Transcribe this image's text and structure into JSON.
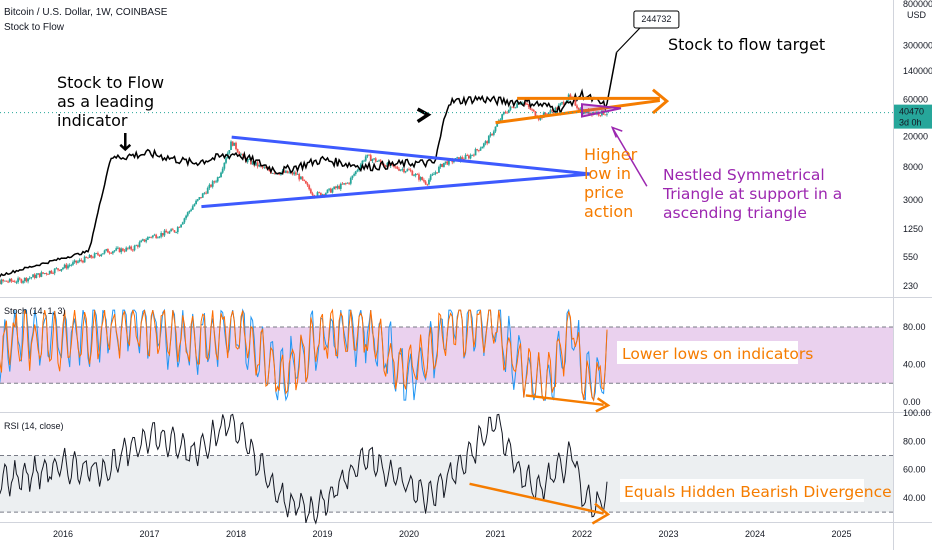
{
  "header": {
    "symbol_line": "Bitcoin / U.S. Dollar, 1W, COINBASE",
    "indicator_line": "Stock to Flow",
    "currency": "USD"
  },
  "price_box": {
    "value": "40470",
    "countdown": "3d 0h"
  },
  "colors": {
    "up": "#26a69a",
    "down": "#ef5350",
    "s2f": "#000000",
    "triangle": "#3d5afe",
    "orange": "#f57c00",
    "purple": "#9c27b0",
    "stoch_k": "#2196f3",
    "stoch_d": "#ff6d00",
    "band": "#e1bee7",
    "rsi_line": "#131722",
    "rsi_band": "#eceff1",
    "price_box": "#26a69a"
  },
  "annotations": {
    "s2f_leading": [
      "Stock to Flow",
      "as a leading",
      "indicator"
    ],
    "s2f_target": "Stock to flow target",
    "target_callout": "244732",
    "higher_low": [
      "Higher",
      "low in",
      "price",
      "action"
    ],
    "nestled": [
      "Nestled Symmetrical",
      "Triangle at support in a",
      "ascending triangle"
    ],
    "lower_lows": "Lower lows on indicators",
    "hidden_div": "Equals Hidden Bearish Divergence"
  },
  "chart_data": [
    {
      "type": "line",
      "title": "Bitcoin / U.S. Dollar, 1W, COINBASE",
      "scale": "log",
      "y_ticks": [
        "800000",
        "300000",
        "140000",
        "60000",
        "20000",
        "8000",
        "3000",
        "1250",
        "550",
        "230"
      ],
      "x_ticks": [
        "2016",
        "2017",
        "2018",
        "2019",
        "2020",
        "2021",
        "2022",
        "2023",
        "2024",
        "2025"
      ],
      "series": [
        {
          "name": "",
          "style": "candles",
          "x": [
            2015.0,
            2015.5,
            2016.0,
            2016.5,
            2016.8,
            2017.0,
            2017.3,
            2017.5,
            2017.8,
            2017.95,
            2018.1,
            2018.4,
            2018.7,
            2018.9,
            2019.0,
            2019.3,
            2019.5,
            2019.8,
            2020.0,
            2020.2,
            2020.4,
            2020.7,
            2020.9,
            2021.1,
            2021.3,
            2021.5,
            2021.7,
            2021.85,
            2022.0,
            2022.2,
            2022.3
          ],
          "values": [
            250,
            270,
            400,
            650,
            700,
            1000,
            1200,
            2500,
            6000,
            17000,
            10000,
            7000,
            6500,
            3500,
            3600,
            5000,
            11000,
            8000,
            7200,
            5000,
            9000,
            11000,
            17000,
            40000,
            58000,
            35000,
            45000,
            65000,
            42000,
            40000,
            40470
          ]
        },
        {
          "name": "Stock to Flow",
          "x": [
            2015.0,
            2015.6,
            2016.3,
            2016.55,
            2017.0,
            2017.5,
            2018.0,
            2018.5,
            2019.0,
            2019.5,
            2020.0,
            2020.3,
            2020.45,
            2020.8,
            2021.0,
            2021.4,
            2021.75,
            2022.0,
            2022.3,
            2022.4
          ],
          "values": [
            260,
            400,
            650,
            10500,
            12000,
            9000,
            12000,
            7000,
            10000,
            8000,
            9000,
            9000,
            55000,
            62000,
            58000,
            55000,
            45000,
            70000,
            48000,
            244732
          ]
        }
      ]
    },
    {
      "type": "line",
      "title": "Stoch (14, 1, 3)",
      "y_ticks": [
        "80.00",
        "40.00",
        "0.00"
      ],
      "band": [
        20,
        80
      ],
      "series": [
        {
          "name": "",
          "x": [
            2015.0,
            2015.5,
            2016.0,
            2016.5,
            2017.0,
            2017.5,
            2018.0,
            2018.5,
            2019.0,
            2019.5,
            2020.0,
            2020.5,
            2021.0,
            2021.3,
            2021.6,
            2021.9,
            2022.0,
            2022.2,
            2022.3
          ],
          "values": [
            40,
            75,
            70,
            80,
            85,
            60,
            85,
            20,
            75,
            80,
            25,
            85,
            85,
            30,
            10,
            90,
            20,
            15,
            70
          ]
        },
        {
          "name": "",
          "x": [
            2015.0,
            2015.5,
            2016.0,
            2016.5,
            2017.0,
            2017.5,
            2018.0,
            2018.5,
            2019.0,
            2019.5,
            2020.0,
            2020.5,
            2021.0,
            2021.3,
            2021.6,
            2021.9,
            2022.0,
            2022.2,
            2022.3
          ],
          "values": [
            45,
            70,
            65,
            75,
            80,
            62,
            80,
            25,
            70,
            75,
            30,
            80,
            80,
            35,
            15,
            85,
            25,
            20,
            65
          ]
        }
      ]
    },
    {
      "type": "line",
      "title": "RSI (14, close)",
      "y_ticks": [
        "100.00",
        "80.00",
        "60.00",
        "40.00"
      ],
      "band": [
        30,
        70
      ],
      "series": [
        {
          "name": "",
          "x": [
            2015.0,
            2015.5,
            2016.0,
            2016.5,
            2017.0,
            2017.5,
            2017.95,
            2018.5,
            2018.9,
            2019.5,
            2020.2,
            2020.6,
            2021.0,
            2021.3,
            2021.5,
            2021.9,
            2022.0,
            2022.2,
            2022.3
          ],
          "values": [
            50,
            55,
            62,
            60,
            85,
            72,
            95,
            40,
            30,
            70,
            40,
            62,
            95,
            55,
            45,
            70,
            40,
            35,
            42
          ]
        }
      ]
    }
  ]
}
